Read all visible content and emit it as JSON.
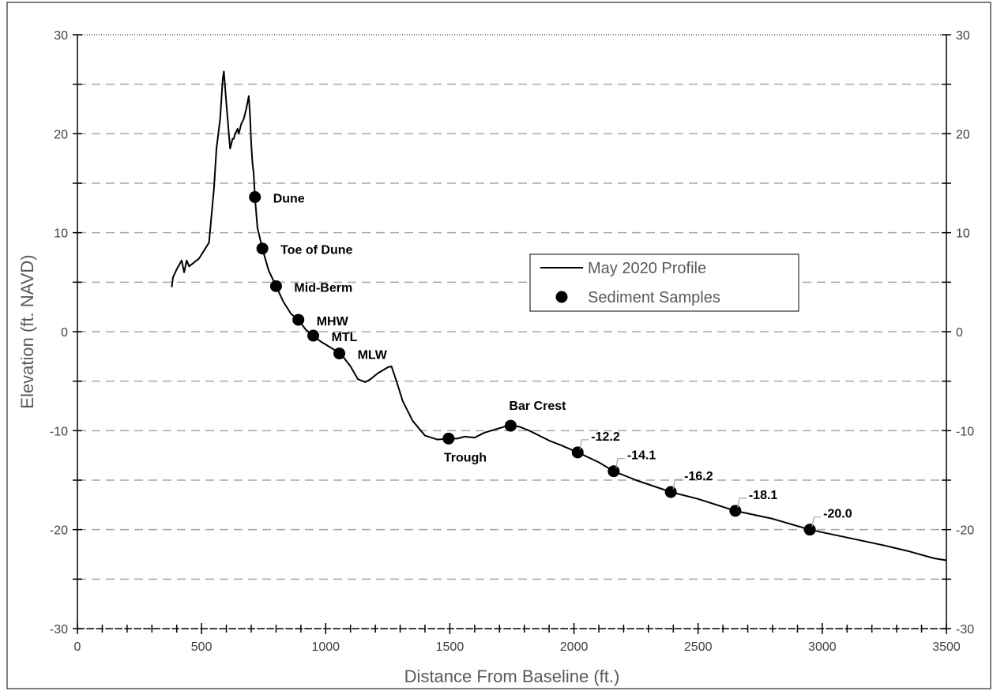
{
  "chart_data": {
    "type": "line",
    "xlabel": "Distance From Baseline (ft.)",
    "ylabel": "Elevation (ft. NAVD)",
    "xlim": [
      0,
      3500
    ],
    "ylim": [
      -30,
      30
    ],
    "x_ticks": [
      "0",
      "500",
      "1000",
      "1500",
      "2000",
      "2500",
      "3000",
      "3500"
    ],
    "y_ticks": [
      "-30",
      "-20",
      "-10",
      "0",
      "10",
      "20",
      "30"
    ],
    "x_tick_values": [
      0,
      500,
      1000,
      1500,
      2000,
      2500,
      3000,
      3500
    ],
    "y_tick_values": [
      -30,
      -20,
      -10,
      0,
      10,
      20,
      30
    ],
    "gridlines_y": [
      -25,
      -20,
      -15,
      -10,
      -5,
      0,
      5,
      10,
      15,
      20,
      25
    ],
    "grid": "horizontal dashed",
    "legend": {
      "position": "center-right",
      "entries": [
        "May 2020 Profile",
        "Sediment Samples"
      ]
    },
    "series": [
      {
        "name": "May 2020 Profile",
        "kind": "line",
        "color": "#000000",
        "x": [
          380,
          385,
          400,
          420,
          430,
          440,
          450,
          470,
          490,
          510,
          530,
          550,
          560,
          565,
          570,
          575,
          580,
          585,
          590,
          600,
          610,
          615,
          620,
          625,
          630,
          635,
          640,
          645,
          650,
          660,
          670,
          680,
          690,
          695,
          700,
          705,
          710,
          712,
          715,
          725,
          745,
          770,
          800,
          830,
          860,
          890,
          920,
          950,
          980,
          1020,
          1060,
          1100,
          1130,
          1160,
          1180,
          1210,
          1250,
          1265,
          1285,
          1310,
          1350,
          1400,
          1450,
          1495,
          1530,
          1560,
          1600,
          1640,
          1680,
          1720,
          1745,
          1780,
          1820,
          1860,
          1900,
          1950,
          2015,
          2100,
          2160,
          2250,
          2390,
          2500,
          2650,
          2800,
          2950,
          3100,
          3250,
          3350,
          3450,
          3500
        ],
        "y": [
          4.5,
          5.5,
          6.3,
          7.2,
          6.0,
          7.2,
          6.6,
          7.0,
          7.4,
          8.2,
          9.0,
          14.5,
          18.5,
          19.5,
          20.5,
          21.5,
          23.5,
          25.5,
          26.3,
          23.0,
          20.0,
          18.5,
          19.0,
          19.5,
          19.5,
          20.0,
          20.2,
          20.5,
          20.0,
          21.0,
          21.5,
          22.5,
          23.8,
          22.0,
          19.0,
          17.0,
          16.0,
          15.0,
          13.6,
          10.5,
          8.4,
          6.2,
          4.6,
          3.0,
          1.8,
          1.2,
          0.2,
          -0.4,
          -1.0,
          -1.6,
          -2.2,
          -3.5,
          -4.8,
          -5.1,
          -4.8,
          -4.2,
          -3.6,
          -3.5,
          -5.0,
          -7.0,
          -9.0,
          -10.5,
          -10.9,
          -10.8,
          -10.8,
          -10.6,
          -10.7,
          -10.2,
          -9.9,
          -9.6,
          -9.5,
          -9.6,
          -10.0,
          -10.5,
          -11.0,
          -11.5,
          -12.2,
          -13.2,
          -14.1,
          -15.0,
          -16.2,
          -16.9,
          -18.1,
          -18.9,
          -20.0,
          -20.8,
          -21.6,
          -22.2,
          -22.9,
          -23.1
        ]
      },
      {
        "name": "Sediment Samples",
        "kind": "scatter",
        "color": "#000000",
        "points": [
          {
            "label": "Dune",
            "x": 715,
            "y": 13.6,
            "leader": false
          },
          {
            "label": "Toe of Dune",
            "x": 745,
            "y": 8.4,
            "leader": false
          },
          {
            "label": "Mid-Berm",
            "x": 800,
            "y": 4.6,
            "leader": false
          },
          {
            "label": "MHW",
            "x": 890,
            "y": 1.2,
            "leader": false
          },
          {
            "label": "MTL",
            "x": 950,
            "y": -0.4,
            "leader": false
          },
          {
            "label": "MLW",
            "x": 1055,
            "y": -2.2,
            "leader": false
          },
          {
            "label": "Trough",
            "x": 1495,
            "y": -10.8,
            "leader": false
          },
          {
            "label": "Bar Crest",
            "x": 1745,
            "y": -9.5,
            "leader": false
          },
          {
            "label": "-12.2",
            "x": 2015,
            "y": -12.2,
            "leader": true
          },
          {
            "label": "-14.1",
            "x": 2160,
            "y": -14.1,
            "leader": true
          },
          {
            "label": "-16.2",
            "x": 2390,
            "y": -16.2,
            "leader": true
          },
          {
            "label": "-18.1",
            "x": 2650,
            "y": -18.1,
            "leader": true
          },
          {
            "label": "-20.0",
            "x": 2950,
            "y": -20.0,
            "leader": true
          }
        ]
      }
    ]
  }
}
